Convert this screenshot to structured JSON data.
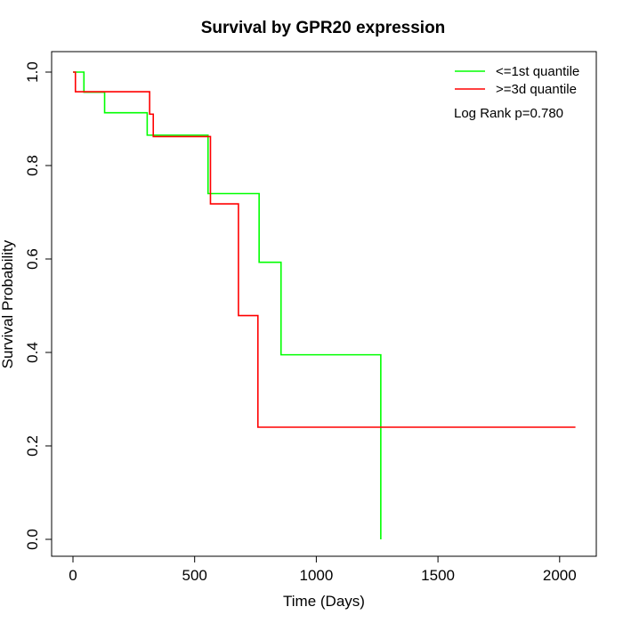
{
  "chart_data": {
    "type": "line",
    "subtype": "kaplan-meier step",
    "title": "Survival by GPR20 expression",
    "xlabel": "Time (Days)",
    "ylabel": "Survival Probability",
    "xlim": [
      0,
      2100
    ],
    "ylim": [
      0,
      1.0
    ],
    "xticks": [
      0,
      500,
      1000,
      1500,
      2000
    ],
    "yticks": [
      0.0,
      0.2,
      0.4,
      0.6,
      0.8,
      1.0
    ],
    "grid": false,
    "legend_position": "top-right",
    "annotation": "Log Rank p=0.780",
    "series": [
      {
        "name": "<=1st quantile",
        "color": "#00ff00",
        "x": [
          0,
          45,
          130,
          305,
          555,
          765,
          855,
          1265
        ],
        "y": [
          1.0,
          0.957,
          0.913,
          0.865,
          0.74,
          0.593,
          0.395,
          0.0
        ],
        "end_x": 1265
      },
      {
        "name": ">=3d quantile",
        "color": "#ff0000",
        "x": [
          0,
          10,
          315,
          330,
          565,
          680,
          760
        ],
        "y": [
          1.0,
          0.958,
          0.91,
          0.862,
          0.718,
          0.479,
          0.24
        ],
        "end_x": 2065
      }
    ]
  }
}
